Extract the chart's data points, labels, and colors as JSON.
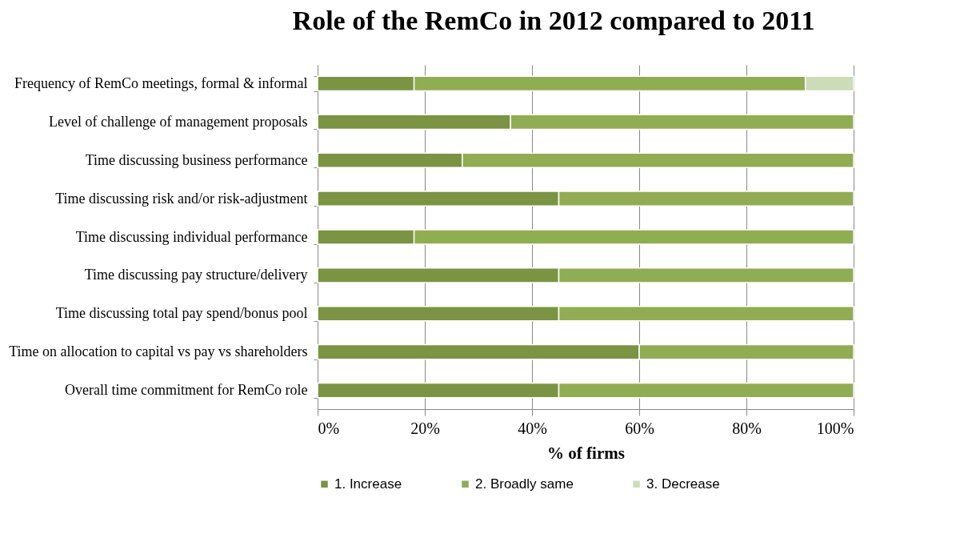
{
  "chart_data": {
    "type": "bar",
    "orientation": "horizontal",
    "stacked": true,
    "title": "Role of the RemCo in 2012 compared to 2011",
    "xlabel": "% of firms",
    "categories": [
      "Frequency of RemCo meetings, formal & informal",
      "Level of challenge of management proposals",
      "Time discussing business performance",
      "Time discussing risk and/or risk-adjustment",
      "Time discussing individual performance",
      "Time discussing pay structure/delivery",
      "Time discussing total pay spend/bonus pool",
      "Time on allocation to capital vs pay vs shareholders",
      "Overall time commitment for RemCo role"
    ],
    "series": [
      {
        "name": "1. Increase",
        "color": "#7a9442",
        "values": [
          18,
          36,
          27,
          45,
          18,
          45,
          45,
          60,
          45
        ]
      },
      {
        "name": "2. Broadly same",
        "color": "#90ad52",
        "values": [
          73,
          64,
          73,
          55,
          82,
          55,
          55,
          40,
          55
        ]
      },
      {
        "name": "3. Decrease",
        "color": "#cddcb8",
        "values": [
          9,
          null,
          null,
          null,
          null,
          null,
          null,
          null,
          null
        ]
      }
    ],
    "xlim": [
      0,
      100
    ],
    "xticks": [
      {
        "value": 0,
        "label": "0%"
      },
      {
        "value": 20,
        "label": "20%"
      },
      {
        "value": 40,
        "label": "40%"
      },
      {
        "value": 60,
        "label": "60%"
      },
      {
        "value": 80,
        "label": "80%"
      },
      {
        "value": 100,
        "label": "100%"
      }
    ],
    "grid": "x",
    "legend": "bottom"
  }
}
